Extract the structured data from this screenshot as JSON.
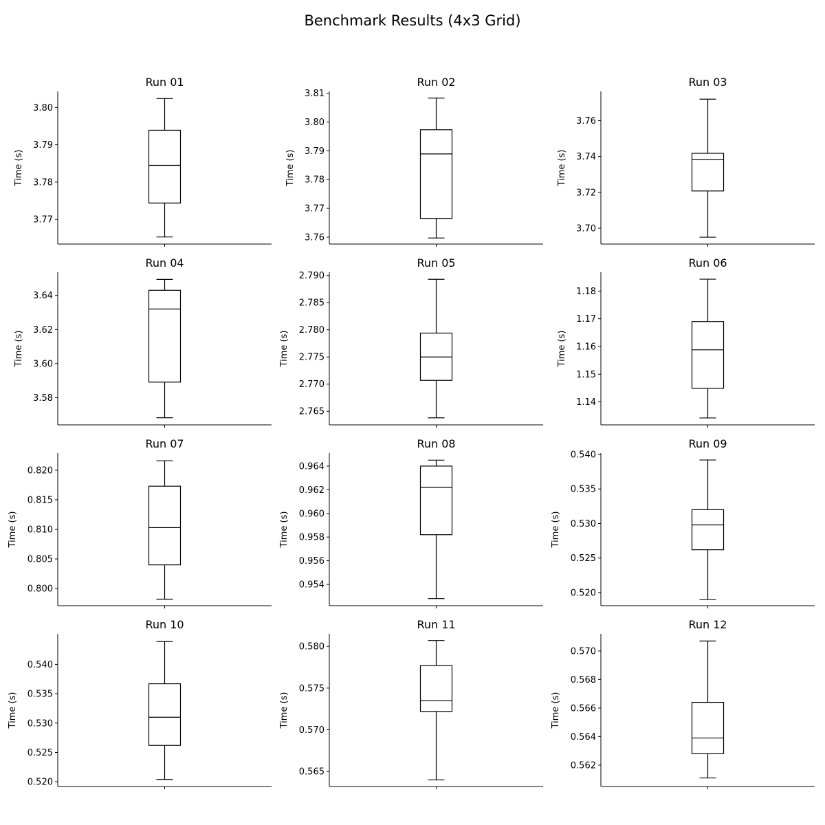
{
  "figure": {
    "title": "Benchmark Results (4x3 Grid)"
  },
  "chart_data": [
    {
      "type": "box",
      "title": "Run 01",
      "ylabel": "Time (s)",
      "ylim": [
        3.7634,
        3.8043
      ],
      "yticks": [
        "3.77",
        "3.78",
        "3.79",
        "3.80"
      ],
      "yticks_values": [
        3.77,
        3.78,
        3.79,
        3.8
      ],
      "box": {
        "whisker_low": 3.7653,
        "q1": 3.7744,
        "median": 3.7845,
        "q3": 3.7939,
        "whisker_high": 3.8024
      }
    },
    {
      "type": "box",
      "title": "Run 02",
      "ylabel": "Time (s)",
      "ylim": [
        3.7576,
        3.8106
      ],
      "yticks": [
        "3.76",
        "3.77",
        "3.78",
        "3.79",
        "3.80",
        "3.81"
      ],
      "yticks_values": [
        3.76,
        3.77,
        3.78,
        3.79,
        3.8,
        3.81
      ],
      "box": {
        "whisker_low": 3.7597,
        "q1": 3.7665,
        "median": 3.7889,
        "q3": 3.7973,
        "whisker_high": 3.8083
      }
    },
    {
      "type": "box",
      "title": "Run 03",
      "ylabel": "Time (s)",
      "ylim": [
        3.6912,
        3.7763
      ],
      "yticks": [
        "3.70",
        "3.72",
        "3.74",
        "3.76"
      ],
      "yticks_values": [
        3.7,
        3.72,
        3.74,
        3.76
      ],
      "box": {
        "whisker_low": 3.695,
        "q1": 3.7208,
        "median": 3.7383,
        "q3": 3.7418,
        "whisker_high": 3.772
      }
    },
    {
      "type": "box",
      "title": "Run 04",
      "ylabel": "Time (s)",
      "ylim": [
        3.564,
        3.6536
      ],
      "yticks": [
        "3.58",
        "3.60",
        "3.62",
        "3.64"
      ],
      "yticks_values": [
        3.58,
        3.6,
        3.62,
        3.64
      ],
      "box": {
        "whisker_low": 3.5682,
        "q1": 3.5891,
        "median": 3.632,
        "q3": 3.643,
        "whisker_high": 3.6494
      }
    },
    {
      "type": "box",
      "title": "Run 05",
      "ylabel": "Time (s)",
      "ylim": [
        2.7625,
        2.7906
      ],
      "yticks": [
        "2.765",
        "2.770",
        "2.775",
        "2.780",
        "2.785",
        "2.790"
      ],
      "yticks_values": [
        2.765,
        2.77,
        2.775,
        2.78,
        2.785,
        2.79
      ],
      "box": {
        "whisker_low": 2.7638,
        "q1": 2.7707,
        "median": 2.775,
        "q3": 2.7794,
        "whisker_high": 2.7893
      }
    },
    {
      "type": "box",
      "title": "Run 06",
      "ylabel": "Time (s)",
      "ylim": [
        1.1317,
        1.1868
      ],
      "yticks": [
        "1.14",
        "1.15",
        "1.16",
        "1.17",
        "1.18"
      ],
      "yticks_values": [
        1.14,
        1.15,
        1.16,
        1.17,
        1.18
      ],
      "box": {
        "whisker_low": 1.1342,
        "q1": 1.1449,
        "median": 1.1588,
        "q3": 1.169,
        "whisker_high": 1.1843
      }
    },
    {
      "type": "box",
      "title": "Run 07",
      "ylabel": "Time (s)",
      "ylim": [
        0.7971,
        0.8229
      ],
      "yticks": [
        "0.800",
        "0.805",
        "0.810",
        "0.815",
        "0.820"
      ],
      "yticks_values": [
        0.8,
        0.805,
        0.81,
        0.815,
        0.82
      ],
      "box": {
        "whisker_low": 0.7982,
        "q1": 0.804,
        "median": 0.8103,
        "q3": 0.8173,
        "whisker_high": 0.8216
      }
    },
    {
      "type": "box",
      "title": "Run 08",
      "ylabel": "Time (s)",
      "ylim": [
        0.9522,
        0.9651
      ],
      "yticks": [
        "0.954",
        "0.956",
        "0.958",
        "0.960",
        "0.962",
        "0.964"
      ],
      "yticks_values": [
        0.954,
        0.956,
        0.958,
        0.96,
        0.962,
        0.964
      ],
      "box": {
        "whisker_low": 0.9528,
        "q1": 0.9582,
        "median": 0.9622,
        "q3": 0.964,
        "whisker_high": 0.9645
      }
    },
    {
      "type": "box",
      "title": "Run 09",
      "ylabel": "Time (s)",
      "ylim": [
        0.5181,
        0.5402
      ],
      "yticks": [
        "0.520",
        "0.525",
        "0.530",
        "0.535",
        "0.540"
      ],
      "yticks_values": [
        0.52,
        0.525,
        0.53,
        0.535,
        0.54
      ],
      "box": {
        "whisker_low": 0.519,
        "q1": 0.5262,
        "median": 0.5298,
        "q3": 0.532,
        "whisker_high": 0.5392
      }
    },
    {
      "type": "box",
      "title": "Run 10",
      "ylabel": "Time (s)",
      "ylim": [
        0.5192,
        0.5452
      ],
      "yticks": [
        "0.520",
        "0.525",
        "0.530",
        "0.535",
        "0.540"
      ],
      "yticks_values": [
        0.52,
        0.525,
        0.53,
        0.535,
        0.54
      ],
      "box": {
        "whisker_low": 0.5204,
        "q1": 0.5262,
        "median": 0.531,
        "q3": 0.5367,
        "whisker_high": 0.5439
      }
    },
    {
      "type": "box",
      "title": "Run 11",
      "ylabel": "Time (s)",
      "ylim": [
        0.5632,
        0.5815
      ],
      "yticks": [
        "0.565",
        "0.570",
        "0.575",
        "0.580"
      ],
      "yticks_values": [
        0.565,
        0.57,
        0.575,
        0.58
      ],
      "box": {
        "whisker_low": 0.564,
        "q1": 0.5722,
        "median": 0.5735,
        "q3": 0.5777,
        "whisker_high": 0.5807
      }
    },
    {
      "type": "box",
      "title": "Run 12",
      "ylabel": "Time (s)",
      "ylim": [
        0.5605,
        0.5712
      ],
      "yticks": [
        "0.562",
        "0.564",
        "0.566",
        "0.568",
        "0.570"
      ],
      "yticks_values": [
        0.562,
        0.564,
        0.566,
        0.568,
        0.57
      ],
      "box": {
        "whisker_low": 0.5611,
        "q1": 0.5628,
        "median": 0.5639,
        "q3": 0.5664,
        "whisker_high": 0.5707
      }
    }
  ]
}
